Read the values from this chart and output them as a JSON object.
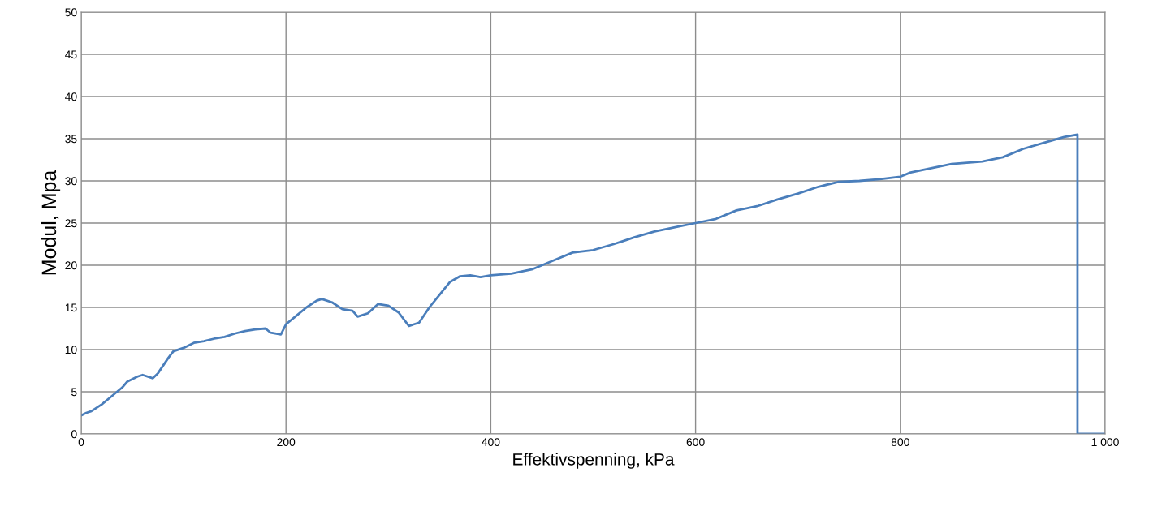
{
  "chart_data": {
    "type": "line",
    "xlabel": "Effektivspenning, kPa",
    "ylabel": "Modul, Mpa",
    "xlim": [
      0,
      1000
    ],
    "xticks": [
      0,
      200,
      400,
      600,
      800,
      {
        "value": 1000,
        "label": "1 000"
      }
    ],
    "ylim": [
      0,
      50
    ],
    "yticks": [
      0,
      5,
      10,
      15,
      20,
      25,
      30,
      35,
      40,
      45,
      50
    ],
    "grid": true,
    "marker": "none",
    "line_style": "solid",
    "series": [
      {
        "color": "#4a7ebb",
        "x": [
          0,
          5,
          10,
          20,
          30,
          40,
          45,
          55,
          60,
          70,
          75,
          85,
          90,
          100,
          110,
          120,
          130,
          140,
          150,
          160,
          170,
          180,
          185,
          195,
          200,
          210,
          220,
          230,
          235,
          245,
          255,
          265,
          270,
          280,
          290,
          300,
          310,
          320,
          330,
          340,
          350,
          360,
          370,
          380,
          390,
          400,
          420,
          440,
          460,
          480,
          500,
          520,
          540,
          560,
          580,
          600,
          620,
          640,
          660,
          680,
          700,
          720,
          740,
          760,
          780,
          800,
          810,
          830,
          850,
          870,
          880,
          900,
          920,
          940,
          960,
          973,
          973,
          1000
        ],
        "values": [
          2.2,
          2.5,
          2.7,
          3.5,
          4.5,
          5.5,
          6.2,
          6.8,
          7.0,
          6.6,
          7.2,
          9.0,
          9.8,
          10.2,
          10.8,
          11.0,
          11.3,
          11.5,
          11.9,
          12.2,
          12.4,
          12.5,
          12.0,
          11.8,
          13.0,
          14.0,
          15.0,
          15.8,
          16.0,
          15.6,
          14.8,
          14.6,
          13.9,
          14.3,
          15.4,
          15.2,
          14.4,
          12.8,
          13.2,
          15.0,
          16.5,
          18.0,
          18.7,
          18.8,
          18.6,
          18.8,
          19.0,
          19.5,
          20.5,
          21.5,
          21.8,
          22.5,
          23.3,
          24.0,
          24.5,
          25.0,
          25.5,
          26.5,
          27.0,
          27.8,
          28.5,
          29.3,
          29.9,
          30.0,
          30.2,
          30.5,
          31.0,
          31.5,
          32.0,
          32.2,
          32.3,
          32.8,
          33.8,
          34.5,
          35.2,
          35.5,
          0,
          0
        ]
      }
    ]
  }
}
